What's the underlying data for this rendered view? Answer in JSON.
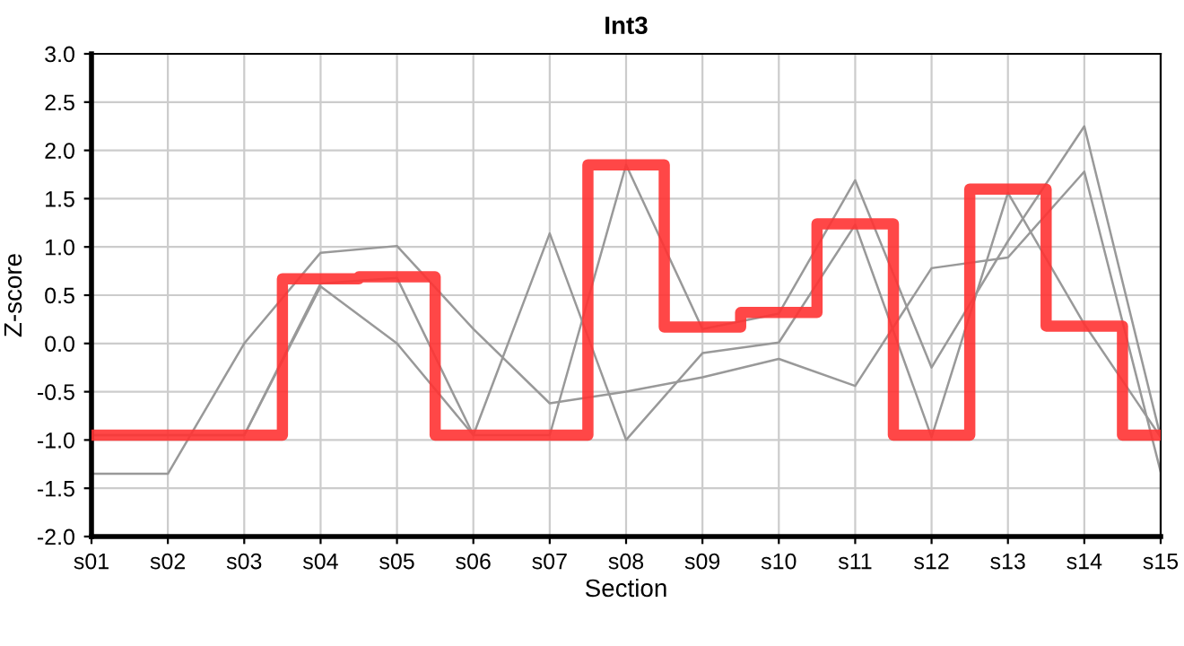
{
  "chart_data": {
    "type": "line",
    "title": "Int3",
    "xlabel": "Section",
    "ylabel": "Z-score",
    "categories": [
      "s01",
      "s02",
      "s03",
      "s04",
      "s05",
      "s06",
      "s07",
      "s08",
      "s09",
      "s10",
      "s11",
      "s12",
      "s13",
      "s14",
      "s15"
    ],
    "series": [
      {
        "color": "#999999",
        "values": [
          -1.35,
          -1.35,
          0.0,
          0.94,
          1.01,
          0.15,
          -0.62,
          -0.5,
          -0.35,
          -0.16,
          -0.44,
          0.78,
          0.89,
          1.78,
          -1.33
        ]
      },
      {
        "color": "#999999",
        "values": [
          -0.95,
          -0.95,
          -0.95,
          0.59,
          0.0,
          -0.95,
          1.14,
          -1.0,
          -0.1,
          0.01,
          1.23,
          -0.97,
          1.56,
          0.2,
          -0.97
        ]
      },
      {
        "color": "#999999",
        "values": [
          -0.95,
          -0.95,
          -0.95,
          0.62,
          0.68,
          -0.95,
          -0.95,
          1.85,
          0.15,
          0.31,
          1.69,
          -0.25,
          1.06,
          2.25,
          -0.97
        ]
      },
      {
        "type": "step",
        "color": "#ff3333",
        "values": [
          -0.95,
          -0.95,
          -0.95,
          0.67,
          0.69,
          -0.95,
          -0.95,
          1.85,
          0.17,
          0.32,
          1.24,
          -0.95,
          1.6,
          0.18,
          -0.95
        ]
      }
    ],
    "ylim": [
      -2.0,
      3.0
    ],
    "yticks": [
      {
        "value": -2.0,
        "label": "-2.0"
      },
      {
        "value": -1.5,
        "label": "-1.5"
      },
      {
        "value": -1.0,
        "label": "-1.0"
      },
      {
        "value": -0.5,
        "label": "-0.5"
      },
      {
        "value": 0.0,
        "label": "0.0"
      },
      {
        "value": 0.5,
        "label": "0.5"
      },
      {
        "value": 1.0,
        "label": "1.0"
      },
      {
        "value": 1.5,
        "label": "1.5"
      },
      {
        "value": 2.0,
        "label": "2.0"
      },
      {
        "value": 2.5,
        "label": "2.5"
      },
      {
        "value": 3.0,
        "label": "3.0"
      }
    ],
    "grid": true
  }
}
